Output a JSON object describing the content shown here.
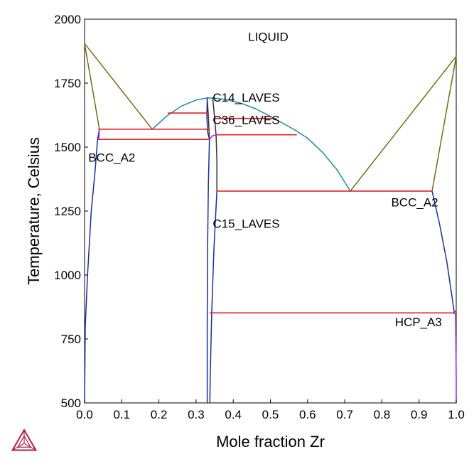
{
  "chart_data": {
    "type": "line",
    "title": "",
    "xlabel": "Mole fraction Zr",
    "ylabel": "Temperature, Celsius",
    "xlim": [
      0.0,
      1.0
    ],
    "ylim": [
      500,
      2000
    ],
    "x_ticks": [
      "0.0",
      "0.1",
      "0.2",
      "0.3",
      "0.4",
      "0.5",
      "0.6",
      "0.7",
      "0.8",
      "0.9",
      "1.0"
    ],
    "y_ticks": [
      "500",
      "750",
      "1000",
      "1250",
      "1500",
      "1750",
      "2000"
    ],
    "grid": false,
    "phase_labels": [
      {
        "text": "LIQUID",
        "x": 0.44,
        "y": 1915
      },
      {
        "text": "C14_LAVES",
        "x": 0.345,
        "y": 1678
      },
      {
        "text": "C36_LAVES",
        "x": 0.345,
        "y": 1590
      },
      {
        "text": "BCC_A2",
        "x": 0.01,
        "y": 1443
      },
      {
        "text": "BCC_A2",
        "x": 0.825,
        "y": 1268
      },
      {
        "text": "C15_LAVES",
        "x": 0.345,
        "y": 1185
      },
      {
        "text": "HCP_A3",
        "x": 0.835,
        "y": 800
      }
    ],
    "colors": {
      "liquidus": "#7a6a10",
      "laves_liquidus": "#1e8c9e",
      "laves_boundary": "#333333",
      "solvus": "#1a2f9c",
      "invariant": "#e31c2a",
      "minor": "#a020f0"
    },
    "series": [
      {
        "color_key": "liquidus",
        "points": [
          [
            0.0,
            1905
          ],
          [
            0.04,
            1570
          ]
        ]
      },
      {
        "color_key": "liquidus",
        "points": [
          [
            0.0,
            1905
          ],
          [
            0.182,
            1570
          ]
        ]
      },
      {
        "color_key": "liquidus",
        "points": [
          [
            1.0,
            1855
          ],
          [
            0.935,
            1328
          ]
        ]
      },
      {
        "color_key": "liquidus",
        "points": [
          [
            1.0,
            1855
          ],
          [
            0.715,
            1328
          ]
        ]
      },
      {
        "color_key": "laves_liquidus",
        "points": [
          [
            0.182,
            1570
          ],
          [
            0.22,
            1620
          ],
          [
            0.26,
            1660
          ],
          [
            0.3,
            1684
          ],
          [
            0.33,
            1692
          ],
          [
            0.345,
            1692
          ],
          [
            0.38,
            1686
          ],
          [
            0.42,
            1672
          ],
          [
            0.46,
            1650
          ],
          [
            0.5,
            1620
          ],
          [
            0.56,
            1572
          ],
          [
            0.6,
            1535
          ],
          [
            0.64,
            1480
          ],
          [
            0.68,
            1410
          ],
          [
            0.715,
            1328
          ]
        ]
      },
      {
        "color_key": "laves_boundary",
        "points": [
          [
            0.33,
            1692
          ],
          [
            0.333,
            1620
          ],
          [
            0.335,
            1560
          ],
          [
            0.336,
            1530
          ]
        ]
      },
      {
        "color_key": "laves_boundary",
        "points": [
          [
            0.345,
            1692
          ],
          [
            0.35,
            1612
          ],
          [
            0.354,
            1545
          ],
          [
            0.356,
            1450
          ],
          [
            0.356,
            1328
          ]
        ]
      },
      {
        "color_key": "solvus",
        "points": [
          [
            0.0,
            500
          ],
          [
            0.002,
            800
          ],
          [
            0.008,
            1000
          ],
          [
            0.018,
            1250
          ],
          [
            0.028,
            1400
          ],
          [
            0.035,
            1530
          ],
          [
            0.04,
            1570
          ]
        ]
      },
      {
        "color_key": "solvus",
        "points": [
          [
            0.336,
            1530
          ],
          [
            0.333,
            1350
          ],
          [
            0.331,
            1100
          ],
          [
            0.33,
            800
          ],
          [
            0.33,
            500
          ]
        ]
      },
      {
        "color_key": "solvus",
        "points": [
          [
            0.356,
            1328
          ],
          [
            0.348,
            1100
          ],
          [
            0.342,
            850
          ],
          [
            0.338,
            600
          ],
          [
            0.337,
            500
          ]
        ]
      },
      {
        "color_key": "solvus",
        "points": [
          [
            0.935,
            1328
          ],
          [
            0.955,
            1200
          ],
          [
            0.975,
            1050
          ],
          [
            0.99,
            900
          ],
          [
            0.995,
            850
          ]
        ]
      },
      {
        "color_key": "solvus",
        "points": [
          [
            0.33,
            1692
          ],
          [
            0.329,
            1620
          ],
          [
            0.331,
            1560
          ],
          [
            0.336,
            1530
          ]
        ]
      },
      {
        "color_key": "minor",
        "points": [
          [
            0.998,
            850
          ],
          [
            1.0,
            600
          ],
          [
            1.0,
            500
          ]
        ]
      },
      {
        "color_key": "minor",
        "points": [
          [
            0.993,
            850
          ],
          [
            1.0,
            862
          ]
        ]
      },
      {
        "color_key": "minor",
        "points": [
          [
            0.04,
            1570
          ],
          [
            0.038,
            1530
          ]
        ]
      },
      {
        "color_key": "minor",
        "points": [
          [
            0.336,
            1530
          ],
          [
            0.345,
            1545
          ],
          [
            0.356,
            1548
          ]
        ]
      },
      {
        "color_key": "invariant",
        "points": [
          [
            0.038,
            1570
          ],
          [
            0.336,
            1570
          ]
        ]
      },
      {
        "color_key": "invariant",
        "points": [
          [
            0.038,
            1530
          ],
          [
            0.336,
            1530
          ]
        ]
      },
      {
        "color_key": "invariant",
        "points": [
          [
            0.225,
            1633
          ],
          [
            0.333,
            1633
          ]
        ]
      },
      {
        "color_key": "invariant",
        "points": [
          [
            0.352,
            1612
          ],
          [
            0.515,
            1612
          ]
        ]
      },
      {
        "color_key": "invariant",
        "points": [
          [
            0.356,
            1548
          ],
          [
            0.57,
            1548
          ]
        ]
      },
      {
        "color_key": "invariant",
        "points": [
          [
            0.356,
            1328
          ],
          [
            0.935,
            1328
          ]
        ]
      },
      {
        "color_key": "invariant",
        "points": [
          [
            0.338,
            852
          ],
          [
            0.995,
            852
          ]
        ]
      }
    ]
  },
  "logo": {
    "name": "thermo-calc-logo",
    "color": "#b3224a"
  }
}
